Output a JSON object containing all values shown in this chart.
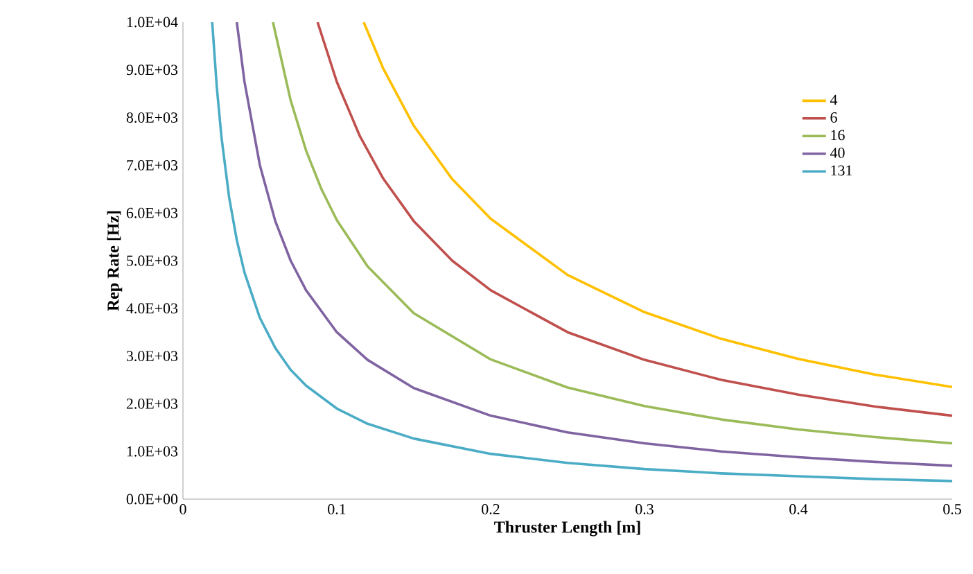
{
  "chart_data": {
    "type": "line",
    "xlabel": "Thruster Length [m]",
    "ylabel": "Rep Rate [Hz]",
    "xlim": [
      0,
      0.5
    ],
    "ylim": [
      0,
      10000
    ],
    "xticks": [
      0,
      0.1,
      0.2,
      0.3,
      0.4,
      0.5
    ],
    "yticks": [
      {
        "value": 0,
        "label": "0.0E+00"
      },
      {
        "value": 1000,
        "label": "1.0E+03"
      },
      {
        "value": 2000,
        "label": "2.0E+03"
      },
      {
        "value": 3000,
        "label": "3.0E+03"
      },
      {
        "value": 4000,
        "label": "4.0E+03"
      },
      {
        "value": 5000,
        "label": "5.0E+03"
      },
      {
        "value": 6000,
        "label": "6.0E+03"
      },
      {
        "value": 7000,
        "label": "7.0E+03"
      },
      {
        "value": 8000,
        "label": "8.0E+03"
      },
      {
        "value": 9000,
        "label": "9.0E+03"
      },
      {
        "value": 10000,
        "label": "1.0E+04"
      }
    ],
    "grid": false,
    "legend": "top right",
    "marker": "none",
    "line_style": "solid",
    "series": [
      {
        "name": "4",
        "color": "#ffc000",
        "x": [
          0.1175,
          0.13,
          0.15,
          0.175,
          0.2,
          0.25,
          0.3,
          0.35,
          0.4,
          0.45,
          0.5
        ],
        "values": [
          10000,
          9040,
          7830,
          6710,
          5880,
          4700,
          3920,
          3360,
          2940,
          2610,
          2350
        ]
      },
      {
        "name": "6",
        "color": "#c0504d",
        "x": [
          0.0875,
          0.1,
          0.115,
          0.13,
          0.15,
          0.175,
          0.2,
          0.25,
          0.3,
          0.35,
          0.4,
          0.45,
          0.5
        ],
        "values": [
          10000,
          8750,
          7610,
          6730,
          5830,
          5000,
          4380,
          3500,
          2920,
          2500,
          2190,
          1940,
          1750
        ]
      },
      {
        "name": "16",
        "color": "#9bbb59",
        "x": [
          0.0585,
          0.07,
          0.08,
          0.09,
          0.1,
          0.12,
          0.15,
          0.2,
          0.25,
          0.3,
          0.35,
          0.4,
          0.45,
          0.5
        ],
        "values": [
          10000,
          8360,
          7310,
          6500,
          5850,
          4880,
          3900,
          2930,
          2340,
          1950,
          1670,
          1460,
          1300,
          1170
        ]
      },
      {
        "name": "40",
        "color": "#8064a2",
        "x": [
          0.035,
          0.04,
          0.05,
          0.06,
          0.07,
          0.08,
          0.1,
          0.12,
          0.15,
          0.2,
          0.25,
          0.3,
          0.35,
          0.4,
          0.45,
          0.5
        ],
        "values": [
          10000,
          8750,
          7000,
          5830,
          5000,
          4380,
          3500,
          2920,
          2330,
          1750,
          1400,
          1170,
          1000,
          880,
          780,
          700
        ]
      },
      {
        "name": "131",
        "color": "#4bacc6",
        "x": [
          0.019,
          0.022,
          0.025,
          0.03,
          0.035,
          0.04,
          0.05,
          0.06,
          0.07,
          0.08,
          0.1,
          0.12,
          0.15,
          0.2,
          0.25,
          0.3,
          0.35,
          0.4,
          0.45,
          0.5
        ],
        "values": [
          10000,
          8640,
          7600,
          6330,
          5430,
          4750,
          3800,
          3170,
          2710,
          2380,
          1900,
          1580,
          1270,
          950,
          760,
          630,
          540,
          480,
          420,
          380
        ]
      }
    ]
  }
}
